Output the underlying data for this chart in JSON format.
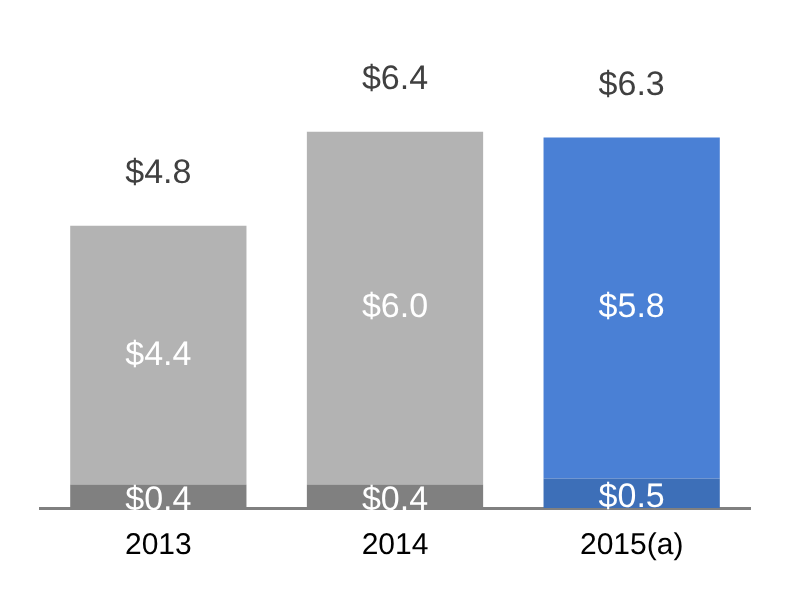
{
  "chart_data": {
    "type": "bar",
    "stacked": true,
    "categories": [
      "2013",
      "2014",
      "2015(a)"
    ],
    "series": [
      {
        "colors": [
          "#808080",
          "#808080",
          "#3d6fb8"
        ],
        "values": [
          0.4,
          0.4,
          0.5
        ],
        "value_labels": [
          "$0.4",
          "$0.4",
          "$0.5"
        ]
      },
      {
        "colors": [
          "#b3b3b3",
          "#b3b3b3",
          "#4a80d5"
        ],
        "values": [
          4.4,
          6.0,
          5.8
        ],
        "value_labels": [
          "$4.4",
          "$6.0",
          "$5.8"
        ]
      }
    ],
    "totals": [
      "$4.8",
      "$6.4",
      "$6.3"
    ],
    "grid": false,
    "legend": false
  }
}
